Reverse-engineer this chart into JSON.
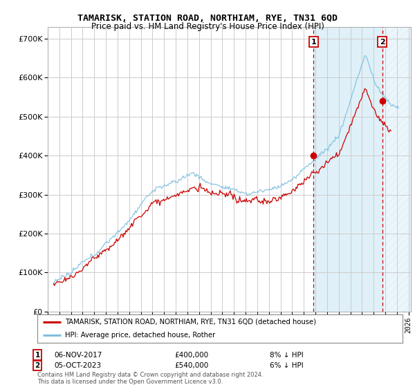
{
  "title": "TAMARISK, STATION ROAD, NORTHIAM, RYE, TN31 6QD",
  "subtitle": "Price paid vs. HM Land Registry's House Price Index (HPI)",
  "ylim": [
    0,
    730000
  ],
  "yticks": [
    0,
    100000,
    200000,
    300000,
    400000,
    500000,
    600000,
    700000
  ],
  "ytick_labels": [
    "£0",
    "£100K",
    "£200K",
    "£300K",
    "£400K",
    "£500K",
    "£600K",
    "£700K"
  ],
  "xlim_start": 1995.3,
  "xlim_end": 2026.2,
  "xticks": [
    1995,
    1996,
    1997,
    1998,
    1999,
    2000,
    2001,
    2002,
    2003,
    2004,
    2005,
    2006,
    2007,
    2008,
    2009,
    2010,
    2011,
    2012,
    2013,
    2014,
    2015,
    2016,
    2017,
    2018,
    2019,
    2020,
    2021,
    2022,
    2023,
    2024,
    2025,
    2026
  ],
  "hpi_color": "#7fbfdf",
  "price_color": "#cc0000",
  "sale1_x": 2017.85,
  "sale1_y": 400000,
  "sale2_x": 2023.75,
  "sale2_y": 540000,
  "legend_label1": "TAMARISK, STATION ROAD, NORTHIAM, RYE, TN31 6QD (detached house)",
  "legend_label2": "HPI: Average price, detached house, Rother",
  "annotation1_date": "06-NOV-2017",
  "annotation1_price": "£400,000",
  "annotation1_hpi": "8% ↓ HPI",
  "annotation2_date": "05-OCT-2023",
  "annotation2_price": "£540,000",
  "annotation2_hpi": "6% ↓ HPI",
  "footer": "Contains HM Land Registry data © Crown copyright and database right 2024.\nThis data is licensed under the Open Government Licence v3.0.",
  "background_color": "#ffffff",
  "plot_bg_color": "#ffffff",
  "grid_color": "#cccccc"
}
